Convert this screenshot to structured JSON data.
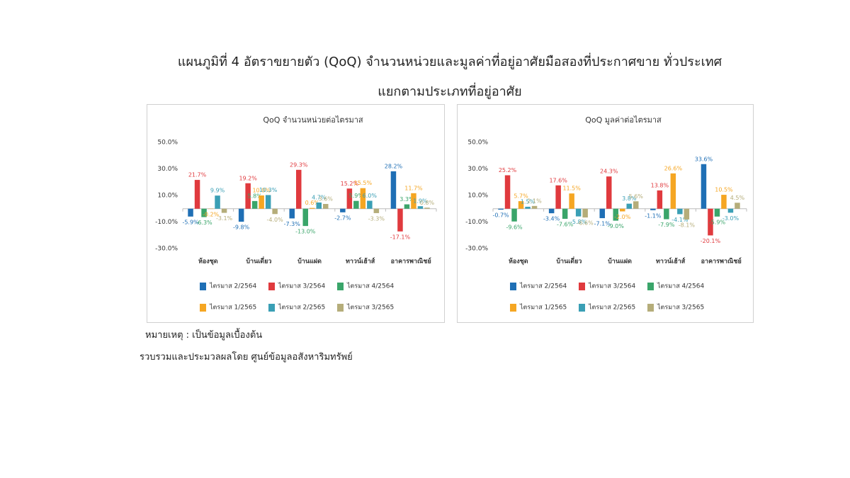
{
  "header": {
    "title": [
      "แผนภูมิที่ 4 อัตราขยายตัว (QoQ) จำนวนหน่วยและมูลค่าที่อยู่อาศัยมือสองที่ประกาศขาย ทั่วประเทศ",
      "แยกตามประเภทที่อยู่อาศัย"
    ]
  },
  "chart_data": [
    {
      "type": "bar",
      "title": "QoQ จำนวนหน่วยต่อไตรมาส",
      "categories": [
        "ห้องชุด",
        "บ้านเดี่ยว",
        "บ้านแฝด",
        "ทาวน์เฮ้าส์",
        "อาคารพาณิชย์"
      ],
      "ylim": [
        -30,
        50
      ],
      "yticks": [
        {
          "value": -30,
          "label": "-30.0%"
        },
        {
          "value": -10,
          "label": "-10.0%"
        },
        {
          "value": 10,
          "label": "10.0%"
        },
        {
          "value": 30,
          "label": "30.0%"
        },
        {
          "value": 50,
          "label": "50.0%"
        }
      ],
      "series": [
        {
          "name": "ไตรมาส 2/2564",
          "color": "#1f6fb5",
          "values": [
            -5.9,
            -9.8,
            -7.3,
            -2.7,
            28.2
          ],
          "value_labels": [
            "-5.9%",
            "-9.8%",
            "-7.3%",
            "-2.7%",
            "28.2%"
          ]
        },
        {
          "name": "ไตรมาส 3/2564",
          "color": "#e03a3e",
          "values": [
            21.7,
            19.2,
            29.3,
            15.2,
            -17.1
          ],
          "value_labels": [
            "21.7%",
            "19.2%",
            "29.3%",
            "15.2%",
            "-17.1%"
          ]
        },
        {
          "name": "ไตรมาส 4/2564",
          "color": "#3aa56a",
          "values": [
            -6.3,
            5.8,
            -13.0,
            5.9,
            3.3
          ],
          "value_labels": [
            "-6.3%",
            "5.8%",
            "-13.0%",
            "5.9%",
            "3.3%"
          ]
        },
        {
          "name": "ไตรมาส 1/2565",
          "color": "#f5a623",
          "values": [
            -0.2,
            10.0,
            0.6,
            15.5,
            11.7
          ],
          "value_labels": [
            "-0.2%",
            "10.0%",
            "0.6%",
            "15.5%",
            "11.7%"
          ]
        },
        {
          "name": "ไตรมาส 2/2565",
          "color": "#3a9fb5",
          "values": [
            9.9,
            10.3,
            4.7,
            6.0,
            1.9
          ],
          "value_labels": [
            "9.9%",
            "10.3%",
            "4.7%",
            "6.0%",
            "1.9%"
          ]
        },
        {
          "name": "ไตรมาส 3/2565",
          "color": "#b5ad7a",
          "values": [
            -3.1,
            -4.0,
            3.6,
            -3.3,
            0.8
          ],
          "value_labels": [
            "-3.1%",
            "-4.0%",
            "3.6%",
            "-3.3%",
            "0.8%"
          ]
        }
      ]
    },
    {
      "type": "bar",
      "title": "QoQ มูลค่าต่อไตรมาส",
      "categories": [
        "ห้องชุด",
        "บ้านเดี่ยว",
        "บ้านแฝด",
        "ทาวน์เฮ้าส์",
        "อาคารพาณิชย์"
      ],
      "ylim": [
        -30,
        50
      ],
      "yticks": [
        {
          "value": -30,
          "label": "-30.0%"
        },
        {
          "value": -10,
          "label": "-10.0%"
        },
        {
          "value": 10,
          "label": "10.0%"
        },
        {
          "value": 30,
          "label": "30.0%"
        },
        {
          "value": 50,
          "label": "50.0%"
        }
      ],
      "series": [
        {
          "name": "ไตรมาส 2/2564",
          "color": "#1f6fb5",
          "values": [
            -0.7,
            -3.4,
            -7.1,
            -1.1,
            33.6
          ],
          "value_labels": [
            "-0.7%",
            "-3.4%",
            "-7.1%",
            "-1.1%",
            "33.6%"
          ]
        },
        {
          "name": "ไตรมาส 3/2564",
          "color": "#e03a3e",
          "values": [
            25.2,
            17.6,
            24.3,
            13.8,
            -20.1
          ],
          "value_labels": [
            "25.2%",
            "17.6%",
            "24.3%",
            "13.8%",
            "-20.1%"
          ]
        },
        {
          "name": "ไตรมาส 4/2564",
          "color": "#3aa56a",
          "values": [
            -9.6,
            -7.6,
            -9.0,
            -7.9,
            -5.9
          ],
          "value_labels": [
            "-9.6%",
            "-7.6%",
            "-9.0%",
            "-7.9%",
            "-5.9%"
          ]
        },
        {
          "name": "ไตรมาส 1/2565",
          "color": "#f5a623",
          "values": [
            5.7,
            11.5,
            -2.0,
            26.6,
            10.5
          ],
          "value_labels": [
            "5.7%",
            "11.5%",
            "-2.0%",
            "26.6%",
            "10.5%"
          ]
        },
        {
          "name": "ไตรมาส 2/2565",
          "color": "#3a9fb5",
          "values": [
            1.5,
            -5.8,
            3.8,
            -4.1,
            -3.0
          ],
          "value_labels": [
            "1.5%",
            "-5.8%",
            "3.8%",
            "-4.1%",
            "-3.0%"
          ]
        },
        {
          "name": "ไตรมาส 3/2565",
          "color": "#b5ad7a",
          "values": [
            2.1,
            -6.6,
            5.6,
            -8.1,
            4.5
          ],
          "value_labels": [
            "2.1%",
            "-6.6%",
            "5.6%",
            "-8.1%",
            "4.5%"
          ]
        }
      ]
    }
  ],
  "notes": [
    "หมายเหตุ : เป็นข้อมูลเบื้องต้น",
    "รวบรวมและประมวลผลโดย ศูนย์ข้อมูลอสังหาริมทรัพย์"
  ]
}
